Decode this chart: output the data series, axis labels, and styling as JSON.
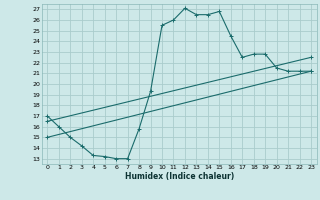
{
  "xlabel": "Humidex (Indice chaleur)",
  "bg_color": "#cde8e8",
  "line_color": "#1a6b6b",
  "grid_color": "#aacccc",
  "xlim": [
    -0.5,
    23.5
  ],
  "ylim": [
    12.5,
    27.5
  ],
  "yticks": [
    13,
    14,
    15,
    16,
    17,
    18,
    19,
    20,
    21,
    22,
    23,
    24,
    25,
    26,
    27
  ],
  "xticks": [
    0,
    1,
    2,
    3,
    4,
    5,
    6,
    7,
    8,
    9,
    10,
    11,
    12,
    13,
    14,
    15,
    16,
    17,
    18,
    19,
    20,
    21,
    22,
    23
  ],
  "curve1_x": [
    0,
    1,
    2,
    3,
    4,
    5,
    6,
    7,
    8,
    9,
    10,
    11,
    12,
    13,
    14,
    15,
    16,
    17,
    18,
    19,
    20,
    21,
    22,
    23
  ],
  "curve1_y": [
    17.0,
    16.0,
    15.0,
    14.2,
    13.3,
    13.2,
    13.0,
    13.0,
    15.8,
    19.3,
    25.5,
    26.0,
    27.1,
    26.5,
    26.5,
    26.8,
    24.5,
    22.5,
    22.8,
    22.8,
    21.5,
    21.2,
    21.2,
    21.2
  ],
  "curve2_x": [
    0,
    23
  ],
  "curve2_y": [
    16.5,
    22.5
  ],
  "curve3_x": [
    0,
    23
  ],
  "curve3_y": [
    15.0,
    21.2
  ],
  "marker": "+"
}
